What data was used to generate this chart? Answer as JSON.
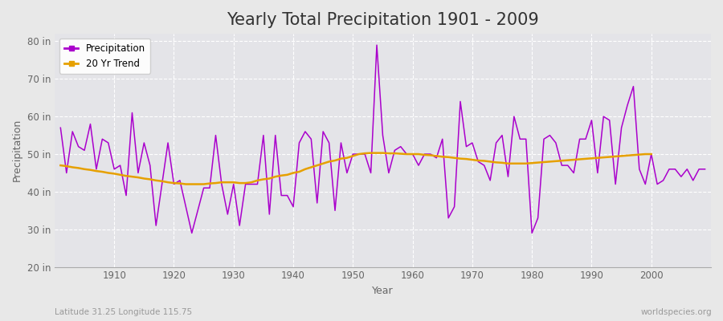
{
  "title": "Yearly Total Precipitation 1901 - 2009",
  "xlabel": "Year",
  "ylabel": "Precipitation",
  "subtitle_left": "Latitude 31.25 Longitude 115.75",
  "subtitle_right": "worldspecies.org",
  "years": [
    1901,
    1902,
    1903,
    1904,
    1905,
    1906,
    1907,
    1908,
    1909,
    1910,
    1911,
    1912,
    1913,
    1914,
    1915,
    1916,
    1917,
    1918,
    1919,
    1920,
    1921,
    1922,
    1923,
    1924,
    1925,
    1926,
    1927,
    1928,
    1929,
    1930,
    1931,
    1932,
    1933,
    1934,
    1935,
    1936,
    1937,
    1938,
    1939,
    1940,
    1941,
    1942,
    1943,
    1944,
    1945,
    1946,
    1947,
    1948,
    1949,
    1950,
    1951,
    1952,
    1953,
    1954,
    1955,
    1956,
    1957,
    1958,
    1959,
    1960,
    1961,
    1962,
    1963,
    1964,
    1965,
    1966,
    1967,
    1968,
    1969,
    1970,
    1971,
    1972,
    1973,
    1974,
    1975,
    1976,
    1977,
    1978,
    1979,
    1980,
    1981,
    1982,
    1983,
    1984,
    1985,
    1986,
    1987,
    1988,
    1989,
    1990,
    1991,
    1992,
    1993,
    1994,
    1995,
    1996,
    1997,
    1998,
    1999,
    2000,
    2001,
    2002,
    2003,
    2004,
    2005,
    2006,
    2007,
    2008,
    2009
  ],
  "precip": [
    57,
    45,
    56,
    52,
    51,
    58,
    46,
    54,
    53,
    46,
    47,
    39,
    61,
    45,
    53,
    47,
    31,
    42,
    53,
    42,
    43,
    36,
    29,
    35,
    41,
    41,
    55,
    42,
    34,
    42,
    31,
    42,
    42,
    42,
    55,
    34,
    55,
    39,
    39,
    36,
    53,
    56,
    54,
    37,
    56,
    53,
    35,
    53,
    45,
    50,
    50,
    50,
    45,
    79,
    55,
    45,
    51,
    52,
    50,
    50,
    47,
    50,
    50,
    49,
    54,
    33,
    36,
    64,
    52,
    53,
    48,
    47,
    43,
    53,
    55,
    44,
    60,
    54,
    54,
    29,
    33,
    54,
    55,
    53,
    47,
    47,
    45,
    54,
    54,
    59,
    45,
    60,
    59,
    42,
    57,
    63,
    68,
    46,
    42,
    50,
    42,
    43,
    46,
    46,
    44,
    46,
    43,
    46,
    46
  ],
  "trend_years": [
    1901,
    1902,
    1903,
    1904,
    1905,
    1906,
    1907,
    1908,
    1909,
    1910,
    1911,
    1912,
    1913,
    1914,
    1915,
    1916,
    1917,
    1918,
    1919,
    1920,
    1921,
    1922,
    1923,
    1924,
    1925,
    1926,
    1927,
    1928,
    1929,
    1930,
    1931,
    1932,
    1933,
    1934,
    1935,
    1936,
    1937,
    1938,
    1939,
    1940,
    1941,
    1942,
    1943,
    1944,
    1945,
    1946,
    1947,
    1948,
    1949,
    1950,
    1951,
    1952,
    1953,
    1954,
    1955,
    1956,
    1957,
    1958,
    1959,
    1960,
    1961,
    1962,
    1963,
    1964,
    1965,
    1966,
    1967,
    1968,
    1969,
    1970,
    1971,
    1972,
    1973,
    1974,
    1975,
    1976,
    1977,
    1978,
    1979,
    1999,
    2000
  ],
  "trend_vals": [
    47.0,
    46.8,
    46.5,
    46.3,
    46.0,
    45.8,
    45.5,
    45.3,
    45.0,
    44.8,
    44.5,
    44.2,
    44.0,
    43.8,
    43.5,
    43.3,
    43.0,
    42.8,
    42.5,
    42.3,
    42.2,
    42.0,
    42.0,
    42.0,
    42.0,
    42.2,
    42.3,
    42.5,
    42.5,
    42.5,
    42.3,
    42.3,
    42.5,
    43.0,
    43.3,
    43.5,
    44.0,
    44.3,
    44.5,
    45.0,
    45.3,
    46.0,
    46.5,
    47.0,
    47.5,
    48.0,
    48.3,
    48.8,
    49.0,
    49.5,
    50.0,
    50.2,
    50.3,
    50.3,
    50.3,
    50.2,
    50.2,
    50.1,
    50.0,
    50.0,
    50.0,
    49.8,
    49.7,
    49.5,
    49.3,
    49.2,
    49.0,
    48.8,
    48.7,
    48.5,
    48.3,
    48.2,
    48.0,
    47.8,
    47.7,
    47.5,
    47.5,
    47.5,
    47.5,
    50.0,
    50.0
  ],
  "precip_color": "#aa00cc",
  "trend_color": "#e6a000",
  "bg_color": "#e8e8e8",
  "plot_bg_color": "#e4e4e8",
  "grid_color": "#ffffff",
  "ylim": [
    20,
    82
  ],
  "yticks": [
    20,
    30,
    40,
    50,
    60,
    70,
    80
  ],
  "ytick_labels": [
    "20 in",
    "30 in",
    "40 in",
    "50 in",
    "60 in",
    "70 in",
    "80 in"
  ],
  "xlim": [
    1900,
    2010
  ],
  "xticks": [
    1910,
    1920,
    1930,
    1940,
    1950,
    1960,
    1970,
    1980,
    1990,
    2000
  ],
  "title_fontsize": 15,
  "axis_label_fontsize": 9,
  "tick_fontsize": 8.5,
  "legend_fontsize": 8.5
}
